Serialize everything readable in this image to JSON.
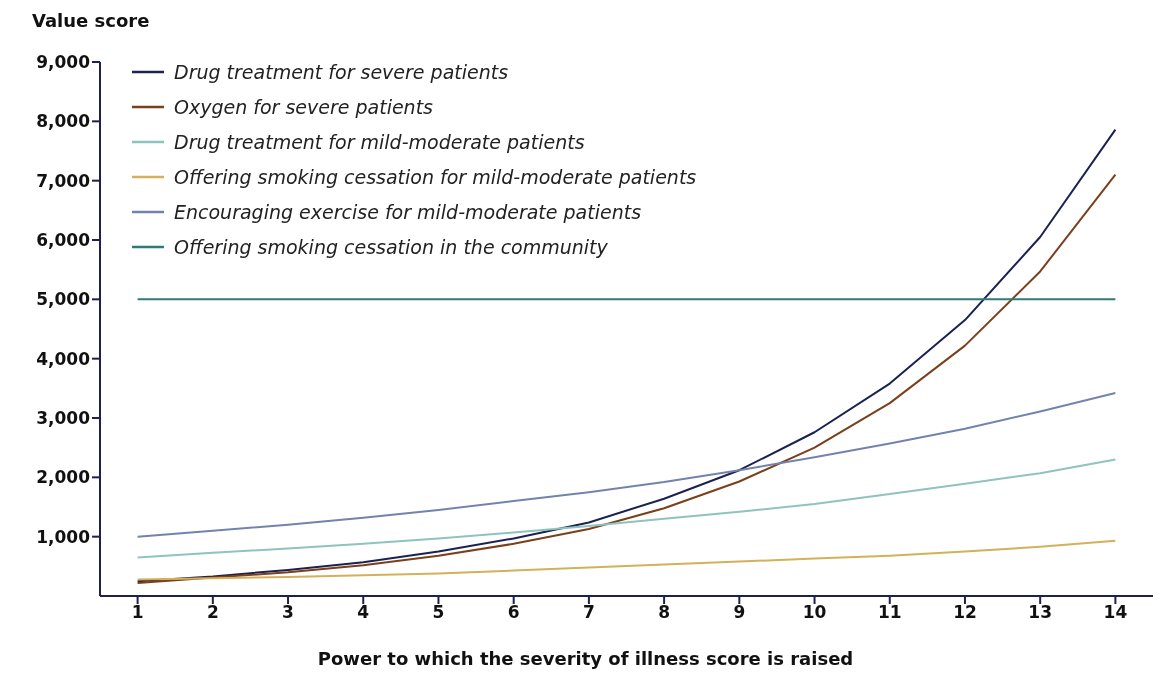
{
  "chart_data": {
    "type": "line",
    "ylabel": "Value score",
    "xlabel": "Power to which the severity of illness score is raised",
    "x": [
      1,
      2,
      3,
      4,
      5,
      6,
      7,
      8,
      9,
      10,
      11,
      12,
      13,
      14
    ],
    "series": [
      {
        "name": "Drug treatment for severe patients",
        "color": "#1b2150",
        "values": [
          250,
          330,
          440,
          570,
          750,
          970,
          1240,
          1640,
          2120,
          2760,
          3580,
          4650,
          6050,
          7860
        ]
      },
      {
        "name": "Oxygen for severe patients",
        "color": "#7b3f1a",
        "values": [
          220,
          310,
          400,
          520,
          680,
          880,
          1130,
          1480,
          1930,
          2500,
          3250,
          4220,
          5470,
          7100
        ]
      },
      {
        "name": "Drug treatment for mild-moderate patients",
        "color": "#8ec3be",
        "values": [
          650,
          730,
          800,
          880,
          970,
          1070,
          1180,
          1300,
          1420,
          1550,
          1720,
          1890,
          2070,
          2300
        ]
      },
      {
        "name": "Offering smoking cessation for mild-moderate patients",
        "color": "#d4b05a",
        "values": [
          280,
          300,
          320,
          350,
          380,
          430,
          480,
          530,
          580,
          630,
          680,
          750,
          830,
          930
        ]
      },
      {
        "name": "Encouraging exercise for mild-moderate patients",
        "color": "#7283ad",
        "values": [
          1000,
          1100,
          1200,
          1320,
          1450,
          1600,
          1750,
          1920,
          2120,
          2340,
          2570,
          2820,
          3110,
          3420
        ]
      },
      {
        "name": "Offering smoking cessation in the community",
        "color": "#2e7b78",
        "values": [
          5000,
          5000,
          5000,
          5000,
          5000,
          5000,
          5000,
          5000,
          5000,
          5000,
          5000,
          5000,
          5000,
          5000
        ]
      }
    ],
    "xlim": [
      0.5,
      14.5
    ],
    "xticks": [
      1,
      2,
      3,
      4,
      5,
      6,
      7,
      8,
      9,
      10,
      11,
      12,
      13,
      14
    ],
    "ylim": [
      0,
      9000
    ],
    "yticks": [
      {
        "value": 1000,
        "label": "1,000"
      },
      {
        "value": 2000,
        "label": "2,000"
      },
      {
        "value": 3000,
        "label": "3,000"
      },
      {
        "value": 4000,
        "label": "4,000"
      },
      {
        "value": 5000,
        "label": "5,000"
      },
      {
        "value": 6000,
        "label": "6,000"
      },
      {
        "value": 7000,
        "label": "7,000"
      },
      {
        "value": 8000,
        "label": "8,000"
      },
      {
        "value": 9000,
        "label": "9,000"
      }
    ],
    "grid": false,
    "legend": "top left",
    "marker": "none",
    "line_style": "solid"
  }
}
